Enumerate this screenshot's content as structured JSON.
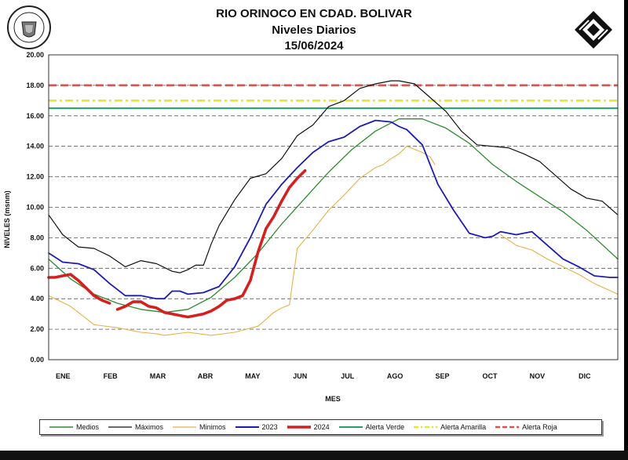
{
  "header": {
    "title": "RIO ORINOCO EN CDAD. BOLIVAR",
    "subtitle": "Niveles Diarios",
    "date": "15/06/2024"
  },
  "logos": {
    "left": "university-seal",
    "right": "institution-logo"
  },
  "chart_data": {
    "type": "line",
    "title": "RIO ORINOCO EN CDAD. BOLIVAR",
    "xlabel": "MES",
    "ylabel": "NIVELES (msnm)",
    "ylim": [
      0,
      20
    ],
    "yticks": [
      "0.00",
      "2.00",
      "4.00",
      "6.00",
      "8.00",
      "10.00",
      "12.00",
      "14.00",
      "16.00",
      "18.00",
      "20.00"
    ],
    "months": [
      "ENE",
      "FEB",
      "MAR",
      "ABR",
      "MAY",
      "JUN",
      "JUL",
      "AGO",
      "SEP",
      "OCT",
      "NOV",
      "DIC"
    ],
    "grid": "horizontal dashed",
    "legend_position": "bottom",
    "alerts": [
      {
        "name": "Alerta Verde",
        "value": 16.5,
        "color": "#22a06b"
      },
      {
        "name": "Alerta Amarilla",
        "value": 17.0,
        "color": "#e8e82a"
      },
      {
        "name": "Alerta Roja",
        "value": 18.0,
        "color": "#d9534f"
      }
    ],
    "series": [
      {
        "name": "Medios",
        "color": "#2e8b2e",
        "x": [
          1,
          15,
          30,
          45,
          60,
          75,
          90,
          105,
          120,
          135,
          150,
          165,
          180,
          195,
          210,
          225,
          240,
          255,
          270,
          285,
          300,
          315,
          330,
          345,
          365
        ],
        "y": [
          6.6,
          5.3,
          4.3,
          3.7,
          3.3,
          3.1,
          3.3,
          4.1,
          5.4,
          7.0,
          8.9,
          10.6,
          12.3,
          13.8,
          15.0,
          15.8,
          15.8,
          15.2,
          14.2,
          12.8,
          11.7,
          10.7,
          9.7,
          8.5,
          6.6
        ]
      },
      {
        "name": "Máximos",
        "color": "#111111",
        "x": [
          1,
          10,
          20,
          30,
          40,
          50,
          60,
          70,
          80,
          85,
          90,
          95,
          100,
          105,
          110,
          120,
          130,
          140,
          150,
          160,
          170,
          180,
          190,
          200,
          210,
          220,
          225,
          235,
          245,
          255,
          265,
          275,
          285,
          295,
          305,
          315,
          325,
          335,
          345,
          355,
          365
        ],
        "y": [
          9.5,
          8.2,
          7.4,
          7.3,
          6.8,
          6.1,
          6.5,
          6.3,
          5.8,
          5.7,
          5.9,
          6.2,
          6.2,
          7.6,
          8.8,
          10.5,
          11.9,
          12.2,
          13.2,
          14.7,
          15.4,
          16.6,
          17.0,
          17.8,
          18.1,
          18.3,
          18.3,
          18.1,
          17.2,
          16.3,
          15.0,
          14.1,
          14.0,
          13.9,
          13.5,
          13.0,
          12.1,
          11.2,
          10.6,
          10.4,
          9.5
        ]
      },
      {
        "name": "Minimos",
        "color": "#e8b04a",
        "x": [
          1,
          15,
          30,
          45,
          60,
          70,
          75,
          90,
          105,
          120,
          135,
          145,
          150,
          155,
          160,
          170,
          180,
          190,
          200,
          210,
          215,
          220,
          225,
          230,
          235,
          240,
          245,
          248
        ],
        "y": [
          4.2,
          3.5,
          2.3,
          2.1,
          1.8,
          1.7,
          1.6,
          1.8,
          1.6,
          1.8,
          2.2,
          3.1,
          3.4,
          3.6,
          7.3,
          8.5,
          9.8,
          10.8,
          11.9,
          12.6,
          12.8,
          13.2,
          13.5,
          14.0,
          13.8,
          13.6,
          13.3,
          12.8
        ]
      },
      {
        "name": "Minimos",
        "color": "#e8b04a",
        "x": [
          290,
          300,
          310,
          320,
          330,
          340,
          350,
          365
        ],
        "y": [
          8.2,
          7.5,
          7.2,
          6.6,
          6.1,
          5.6,
          5.0,
          4.3
        ]
      },
      {
        "name": "2023",
        "color": "#1c1cb5",
        "x": [
          1,
          10,
          20,
          30,
          40,
          50,
          60,
          70,
          75,
          80,
          85,
          90,
          100,
          110,
          120,
          130,
          140,
          150,
          160,
          170,
          180,
          190,
          200,
          210,
          220,
          225,
          230,
          240,
          250,
          260,
          270,
          280,
          285,
          290,
          300,
          310,
          320,
          330,
          340,
          350,
          360,
          365
        ],
        "y": [
          7.0,
          6.4,
          6.3,
          5.9,
          5.0,
          4.2,
          4.2,
          4.0,
          4.0,
          4.5,
          4.5,
          4.3,
          4.4,
          4.8,
          6.1,
          8.0,
          10.2,
          11.5,
          12.6,
          13.6,
          14.3,
          14.6,
          15.3,
          15.7,
          15.6,
          15.3,
          15.1,
          14.1,
          11.5,
          9.8,
          8.3,
          8.0,
          8.1,
          8.4,
          8.2,
          8.4,
          7.5,
          6.6,
          6.1,
          5.5,
          5.4,
          5.4
        ]
      },
      {
        "name": "2024",
        "color": "#d42020",
        "x": [
          1,
          5,
          10,
          15,
          20,
          25,
          30,
          35,
          40
        ],
        "y": [
          5.4,
          5.4,
          5.5,
          5.6,
          5.2,
          4.7,
          4.2,
          3.9,
          3.7
        ]
      },
      {
        "name": "2024",
        "color": "#d42020",
        "x": [
          45,
          50,
          55,
          60,
          65,
          70,
          75,
          80,
          85,
          90,
          95,
          100,
          105,
          110,
          115,
          120,
          125,
          130,
          135,
          140,
          145,
          150,
          155,
          160,
          165
        ],
        "y": [
          3.3,
          3.5,
          3.8,
          3.8,
          3.5,
          3.4,
          3.1,
          3.0,
          2.9,
          2.8,
          2.9,
          3.0,
          3.2,
          3.5,
          3.9,
          4.0,
          4.2,
          5.2,
          7.1,
          8.6,
          9.4,
          10.4,
          11.3,
          11.9,
          12.4
        ]
      }
    ]
  },
  "legend": {
    "items": [
      {
        "label": "Medios",
        "color": "#2e8b2e",
        "style": "solid",
        "width": 1.5
      },
      {
        "label": "Máximos",
        "color": "#111111",
        "style": "solid",
        "width": 1.2
      },
      {
        "label": "Minimos",
        "color": "#e8b04a",
        "style": "solid",
        "width": 1.2
      },
      {
        "label": "2023",
        "color": "#1c1cb5",
        "style": "solid",
        "width": 2
      },
      {
        "label": "2024",
        "color": "#d42020",
        "style": "solid",
        "width": 3.5
      },
      {
        "label": "Alerta Verde",
        "color": "#22a06b",
        "style": "solid",
        "width": 2
      },
      {
        "label": "Alerta Amarilla",
        "color": "#e8e82a",
        "style": "dashdot",
        "width": 2.5
      },
      {
        "label": "Alerta Roja",
        "color": "#d9534f",
        "style": "dashed",
        "width": 2.5
      }
    ]
  }
}
